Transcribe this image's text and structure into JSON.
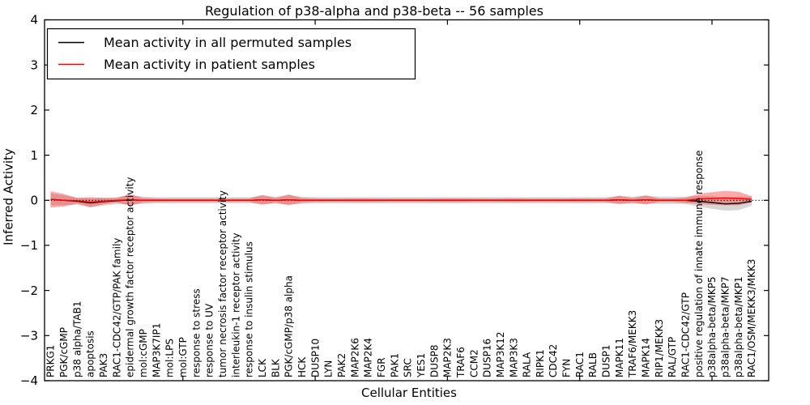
{
  "title": "Regulation of p38-alpha and p38-beta -- 56 samples",
  "chart_data": {
    "type": "line",
    "title": "Regulation of p38-alpha and p38-beta -- 56 samples",
    "xlabel": "Cellular Entities",
    "ylabel": "Inferred Activity",
    "ylim": [
      -4,
      4
    ],
    "yticks": [
      -4,
      -3,
      -2,
      -1,
      0,
      1,
      2,
      3,
      4
    ],
    "xticks": [
      10,
      20,
      30,
      40,
      50
    ],
    "grid": false,
    "legend_position": "upper left",
    "zero_reference_line": "dotted black at y=0",
    "categories": [
      "PRKG1",
      "PGK/cGMP",
      "p38 alpha/TAB1",
      "apoptosis",
      "PAK3",
      "RAC1-CDC42/GTP/PAK family",
      "epidermal growth factor receptor activity",
      "mol:cGMP",
      "MAP3K7IP1",
      "mol:LPS",
      "mol:GTP",
      "response to stress",
      "response to UV",
      "tumor necrosis factor receptor activity",
      "interleukin-1 receptor activity",
      "response to insulin stimulus",
      "LCK",
      "BLK",
      "PGK/cGMP/p38 alpha",
      "HCK",
      "DUSP10",
      "LYN",
      "PAK2",
      "MAP2K6",
      "MAP2K4",
      "FGR",
      "PAK1",
      "SRC",
      "YES1",
      "DUSP8",
      "MAP2K3",
      "TRAF6",
      "CCM2",
      "DUSP16",
      "MAP3K12",
      "MAP3K3",
      "RALA",
      "RIPK1",
      "CDC42",
      "FYN",
      "RAC1",
      "RALB",
      "DUSP1",
      "MAPK11",
      "TRAF6/MEKK3",
      "MAPK14",
      "RIP1/MEKK3",
      "RAL/GTP",
      "RAC1-CDC42/GTP",
      "positive regulation of innate immune response",
      "p38alpha-beta/MKP5",
      "p38alpha-beta/MKP7",
      "p38alpha-beta/MKP1",
      "RAC1/OSM/MEKK3/MKK3"
    ],
    "series": [
      {
        "name": "Mean activity in all permuted samples",
        "color": "#000000",
        "band_color": "rgba(110,110,110,0.28)",
        "values": [
          0.02,
          0,
          -0.02,
          -0.06,
          -0.03,
          -0.01,
          0.01,
          0,
          0,
          0,
          0,
          0,
          0,
          0,
          0,
          0,
          0.01,
          0,
          0.01,
          0,
          0,
          0,
          0,
          0,
          0,
          0,
          0,
          0,
          0,
          0,
          0,
          0,
          0,
          0,
          0,
          0,
          0,
          0,
          0,
          0,
          0,
          0,
          0,
          0.01,
          0,
          0.01,
          0,
          0,
          0,
          -0.02,
          -0.05,
          -0.08,
          -0.07,
          -0.02
        ],
        "band_halfwidth": [
          0.13,
          0.11,
          0.08,
          0.1,
          0.09,
          0.08,
          0.1,
          0.08,
          0.07,
          0.07,
          0.07,
          0.07,
          0.07,
          0.07,
          0.07,
          0.07,
          0.09,
          0.08,
          0.1,
          0.08,
          0.07,
          0.07,
          0.07,
          0.07,
          0.07,
          0.07,
          0.07,
          0.07,
          0.07,
          0.07,
          0.07,
          0.07,
          0.07,
          0.07,
          0.07,
          0.07,
          0.07,
          0.07,
          0.07,
          0.07,
          0.07,
          0.07,
          0.07,
          0.09,
          0.08,
          0.09,
          0.08,
          0.08,
          0.08,
          0.12,
          0.14,
          0.15,
          0.15,
          0.1
        ]
      },
      {
        "name": "Mean activity in patient samples",
        "color": "#ff0000",
        "band_color": "rgba(255,30,30,0.38)",
        "values": [
          0.02,
          0,
          -0.01,
          -0.04,
          -0.02,
          0,
          0.01,
          0,
          0,
          0,
          0,
          0,
          0,
          0,
          0,
          0,
          0.01,
          0,
          0.01,
          0,
          0,
          0,
          0,
          0,
          0,
          0,
          0,
          0,
          0,
          0,
          0,
          0,
          0,
          0,
          0,
          0,
          0,
          0,
          0,
          0,
          0,
          0,
          0,
          0.01,
          0,
          0.01,
          0,
          0,
          0,
          0.03,
          0.04,
          0.05,
          0.04,
          0.02
        ],
        "band_halfwidth": [
          0.18,
          0.14,
          0.06,
          0.11,
          0.07,
          0.05,
          0.13,
          0.05,
          0.04,
          0.035,
          0.035,
          0.035,
          0.035,
          0.035,
          0.035,
          0.035,
          0.11,
          0.05,
          0.12,
          0.05,
          0.04,
          0.035,
          0.035,
          0.04,
          0.04,
          0.035,
          0.035,
          0.035,
          0.035,
          0.035,
          0.04,
          0.04,
          0.035,
          0.035,
          0.035,
          0.04,
          0.035,
          0.035,
          0.035,
          0.035,
          0.04,
          0.035,
          0.04,
          0.09,
          0.05,
          0.1,
          0.04,
          0.04,
          0.06,
          0.11,
          0.14,
          0.16,
          0.15,
          0.07
        ]
      }
    ]
  }
}
